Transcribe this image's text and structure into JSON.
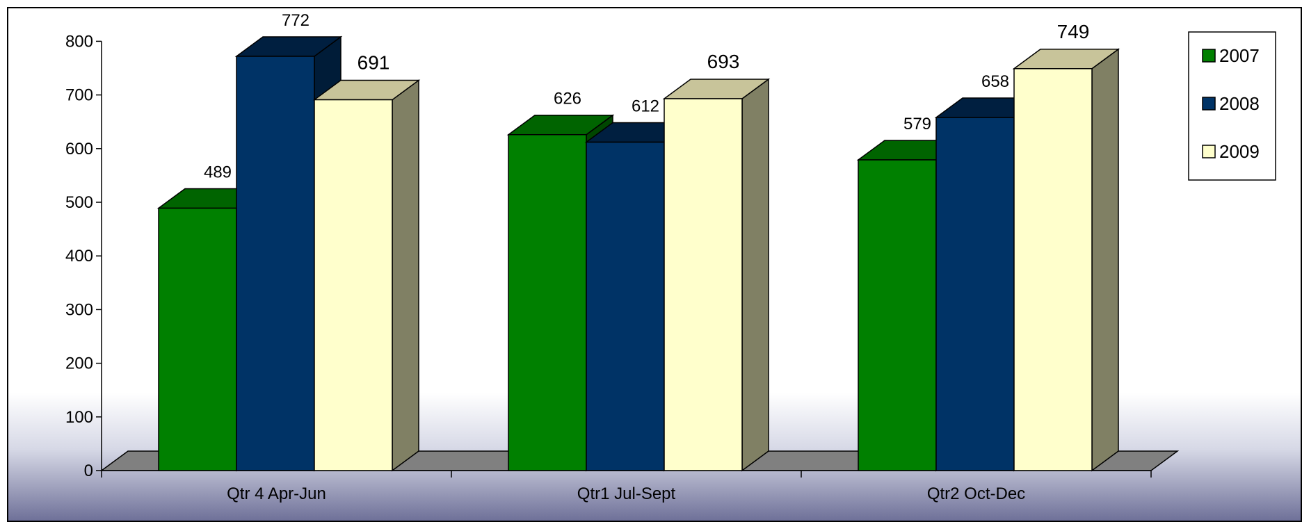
{
  "chart_data": {
    "type": "bar",
    "title": "",
    "xlabel": "",
    "ylabel": "",
    "categories": [
      "Qtr 4 Apr-Jun",
      "Qtr1 Jul-Sept",
      "Qtr2 Oct-Dec"
    ],
    "series": [
      {
        "name": "2007",
        "values": [
          489,
          626,
          579
        ],
        "color": "#008000",
        "top_color": "#006400"
      },
      {
        "name": "2008",
        "values": [
          772,
          612,
          658
        ],
        "color": "#003366",
        "top_color": "#001f40"
      },
      {
        "name": "2009",
        "values": [
          691,
          693,
          749
        ],
        "color": "#ffffcc",
        "top_color": "#c8c49a",
        "side_color": "#808064"
      }
    ],
    "ylim": [
      0,
      800
    ],
    "yticks": [
      "0",
      "100",
      "200",
      "300",
      "400",
      "500",
      "600",
      "700",
      "800"
    ],
    "grid": false,
    "legend_position": "top-right",
    "style": "3d-clustered-column"
  }
}
